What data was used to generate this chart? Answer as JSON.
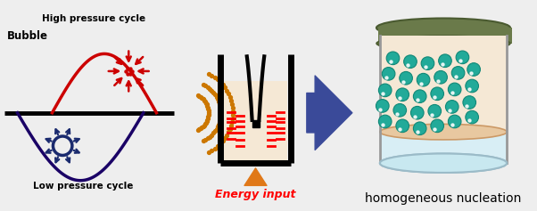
{
  "bg_color": "#eeeeee",
  "title": "homogeneous nucleation",
  "bubble_label": "Bubble",
  "high_pressure_label": "High pressure cycle",
  "low_pressure_label": "Low pressure cycle",
  "energy_label": "Energy input",
  "wave_color": "#cc0000",
  "sine_color": "#1a0066",
  "baseline_color": "#000000",
  "bubble_color": "#1a2a6e",
  "collapse_color": "#cc0000",
  "dot_color": "#cc7700",
  "arrow_color": "#3a4a99",
  "energy_arrow_color": "#e07818",
  "energy_text_color": "#ff0000",
  "container_fill": "#f5e8d5",
  "sphere_color": "#22aa99",
  "base_color": "#6a7a4a",
  "glass_top_color": "#c8e8f0"
}
